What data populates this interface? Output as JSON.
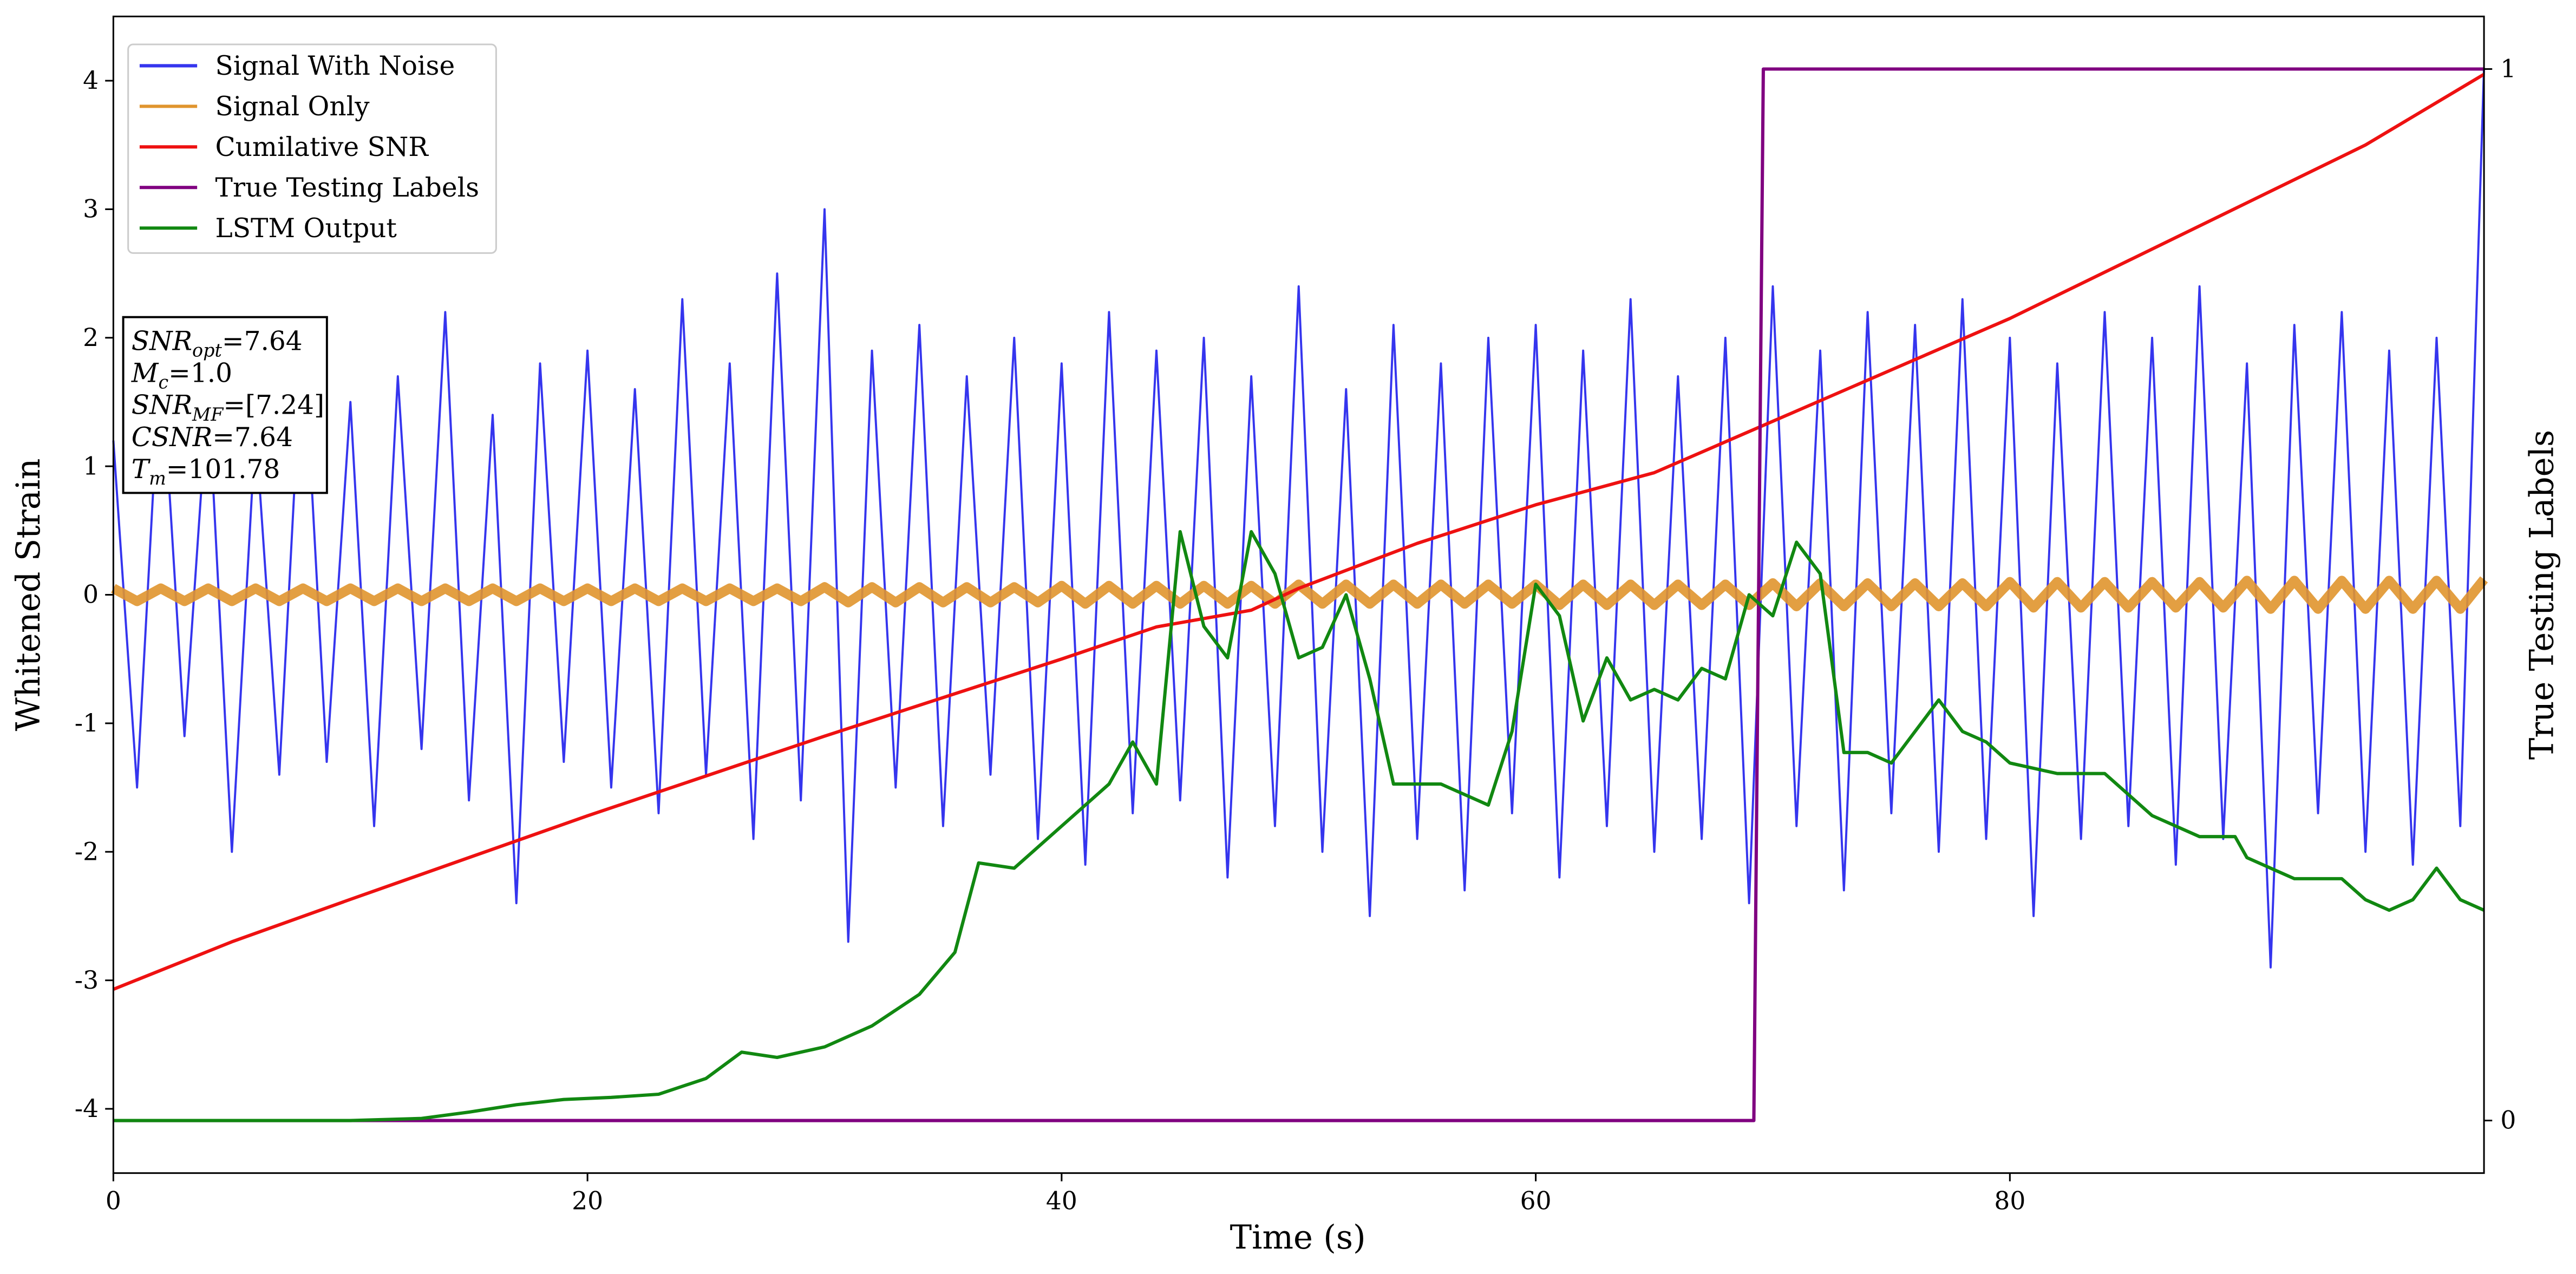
{
  "chart_data": {
    "type": "line",
    "xlabel": "Time (s)",
    "ylabel": "Whitened Strain",
    "y2label": "True Testing Labels",
    "xlim": [
      0,
      100
    ],
    "xticks": [
      0,
      20,
      40,
      60,
      80
    ],
    "ylim": [
      -4.5,
      4.5
    ],
    "yticks": [
      -4,
      -3,
      -2,
      -1,
      0,
      1,
      2,
      3,
      4
    ],
    "y2lim": [
      -0.05,
      1.05
    ],
    "y2ticks": [
      0,
      1
    ],
    "legend": "upper left",
    "annotation": [
      {
        "symbol": "SNR",
        "sub": "opt",
        "value": "=7.64"
      },
      {
        "symbol": "M",
        "sub": "c",
        "value": "=1.0"
      },
      {
        "symbol": "SNR",
        "sub": "MF",
        "value": "=[7.24]"
      },
      {
        "symbol": "CSNR",
        "value": "=7.64"
      },
      {
        "symbol": "T",
        "sub": "m",
        "value": "=101.78"
      }
    ],
    "series": [
      {
        "name": "Signal With Noise",
        "color": "#3535ee",
        "x": [
          0,
          1,
          2,
          3,
          4,
          5,
          6,
          7,
          8,
          9,
          10,
          11,
          12,
          13,
          14,
          15,
          16,
          17,
          18,
          19,
          20,
          21,
          22,
          23,
          24,
          25,
          26,
          27,
          28,
          29,
          30,
          31,
          32,
          33,
          34,
          35,
          36,
          37,
          38,
          39,
          40,
          41,
          42,
          43,
          44,
          45,
          46,
          47,
          48,
          49,
          50,
          51,
          52,
          53,
          54,
          55,
          56,
          57,
          58,
          59,
          60,
          61,
          62,
          63,
          64,
          65,
          66,
          67,
          68,
          69,
          70,
          71,
          72,
          73,
          74,
          75,
          76,
          77,
          78,
          79,
          80,
          81,
          82,
          83,
          84,
          85,
          86,
          87,
          88,
          89,
          90,
          91,
          92,
          93,
          94,
          95,
          96,
          97,
          98,
          99,
          100
        ],
        "values": [
          1.2,
          -1.5,
          1.9,
          -1.1,
          1.6,
          -2.0,
          1.3,
          -1.4,
          2.1,
          -1.3,
          1.5,
          -1.8,
          1.7,
          -1.2,
          2.2,
          -1.6,
          1.4,
          -2.4,
          1.8,
          -1.3,
          1.9,
          -1.5,
          1.6,
          -1.7,
          2.3,
          -1.4,
          1.8,
          -1.9,
          2.5,
          -1.6,
          3.0,
          -2.7,
          1.9,
          -1.5,
          2.1,
          -1.8,
          1.7,
          -1.4,
          2.0,
          -1.9,
          1.8,
          -2.1,
          2.2,
          -1.7,
          1.9,
          -1.6,
          2.0,
          -2.2,
          1.7,
          -1.8,
          2.4,
          -2.0,
          1.6,
          -2.5,
          2.1,
          -1.9,
          1.8,
          -2.3,
          2.0,
          -1.7,
          2.1,
          -2.2,
          1.9,
          -1.8,
          2.3,
          -2.0,
          1.7,
          -1.9,
          2.0,
          -2.4,
          2.4,
          -1.8,
          1.9,
          -2.3,
          2.2,
          -1.7,
          2.1,
          -2.0,
          2.3,
          -1.9,
          2.0,
          -2.5,
          1.8,
          -1.9,
          2.2,
          -1.8,
          2.0,
          -2.1,
          2.4,
          -1.9,
          1.8,
          -2.9,
          2.1,
          -1.7,
          2.2,
          -2.0,
          1.9,
          -2.1,
          2.0,
          -1.8,
          4.1
        ]
      },
      {
        "name": "Signal Only",
        "color": "#e0952e",
        "x": [
          0,
          1,
          2,
          3,
          4,
          5,
          6,
          7,
          8,
          9,
          10,
          11,
          12,
          13,
          14,
          15,
          16,
          17,
          18,
          19,
          20,
          21,
          22,
          23,
          24,
          25,
          26,
          27,
          28,
          29,
          30,
          31,
          32,
          33,
          34,
          35,
          36,
          37,
          38,
          39,
          40,
          41,
          42,
          43,
          44,
          45,
          46,
          47,
          48,
          49,
          50,
          51,
          52,
          53,
          54,
          55,
          56,
          57,
          58,
          59,
          60,
          61,
          62,
          63,
          64,
          65,
          66,
          67,
          68,
          69,
          70,
          71,
          72,
          73,
          74,
          75,
          76,
          77,
          78,
          79,
          80,
          81,
          82,
          83,
          84,
          85,
          86,
          87,
          88,
          89,
          90,
          91,
          92,
          93,
          94,
          95,
          96,
          97,
          98,
          99,
          100
        ],
        "values": [
          0.05,
          -0.05,
          0.05,
          -0.05,
          0.05,
          -0.05,
          0.05,
          -0.05,
          0.05,
          -0.05,
          0.05,
          -0.05,
          0.05,
          -0.05,
          0.05,
          -0.05,
          0.05,
          -0.05,
          0.05,
          -0.05,
          0.05,
          -0.05,
          0.05,
          -0.05,
          0.05,
          -0.05,
          0.05,
          -0.05,
          0.05,
          -0.05,
          0.06,
          -0.06,
          0.06,
          -0.06,
          0.06,
          -0.06,
          0.06,
          -0.06,
          0.06,
          -0.06,
          0.07,
          -0.07,
          0.07,
          -0.07,
          0.07,
          -0.07,
          0.07,
          -0.07,
          0.07,
          -0.07,
          0.08,
          -0.07,
          0.08,
          -0.07,
          0.08,
          -0.07,
          0.08,
          -0.07,
          0.08,
          -0.07,
          0.08,
          -0.08,
          0.08,
          -0.08,
          0.08,
          -0.08,
          0.08,
          -0.08,
          0.08,
          -0.08,
          0.09,
          -0.09,
          0.09,
          -0.09,
          0.09,
          -0.09,
          0.09,
          -0.09,
          0.09,
          -0.09,
          0.1,
          -0.1,
          0.1,
          -0.1,
          0.1,
          -0.1,
          0.1,
          -0.1,
          0.1,
          -0.1,
          0.11,
          -0.11,
          0.11,
          -0.11,
          0.11,
          -0.11,
          0.11,
          -0.11,
          0.11,
          -0.11,
          0.12
        ]
      },
      {
        "name": "Cumilative SNR",
        "color": "#ee1111",
        "x": [
          0,
          5,
          10,
          20,
          30,
          40,
          44,
          48,
          50,
          55,
          60,
          65,
          70,
          75,
          80,
          85,
          90,
          95,
          100
        ],
        "values": [
          -3.07,
          -2.7,
          -2.37,
          -1.72,
          -1.1,
          -0.5,
          -0.25,
          -0.12,
          0.05,
          0.4,
          0.7,
          0.95,
          1.35,
          1.75,
          2.15,
          2.6,
          3.05,
          3.5,
          4.05
        ]
      },
      {
        "name": "True Testing Labels",
        "color": "#800080",
        "axis": "y2",
        "x": [
          0,
          69.2,
          69.6,
          100
        ],
        "values": [
          0,
          0,
          1,
          1
        ]
      },
      {
        "name": "LSTM Output",
        "color": "#118811",
        "axis": "y2",
        "x": [
          0,
          10,
          13,
          15,
          17,
          19,
          21,
          23,
          25,
          26.5,
          28,
          30,
          32,
          34,
          35.5,
          36.5,
          38,
          40,
          42,
          43,
          44,
          45,
          46,
          47,
          48,
          49,
          50,
          51,
          52,
          53,
          54,
          56,
          57,
          58,
          59,
          60,
          61,
          62,
          63,
          64,
          65,
          66,
          67,
          68,
          69,
          70,
          71,
          72,
          73,
          74,
          75,
          76,
          77,
          78,
          79,
          80,
          82,
          84,
          86,
          88,
          89.5,
          90,
          92,
          93,
          94,
          95,
          96,
          97,
          98,
          99,
          100
        ],
        "values": [
          0,
          0,
          0.002,
          0.008,
          0.015,
          0.02,
          0.022,
          0.025,
          0.04,
          0.065,
          0.06,
          0.07,
          0.09,
          0.12,
          0.16,
          0.245,
          0.24,
          0.28,
          0.32,
          0.36,
          0.32,
          0.56,
          0.47,
          0.44,
          0.56,
          0.52,
          0.44,
          0.45,
          0.5,
          0.42,
          0.32,
          0.32,
          0.31,
          0.3,
          0.37,
          0.51,
          0.48,
          0.38,
          0.44,
          0.4,
          0.41,
          0.4,
          0.43,
          0.42,
          0.5,
          0.48,
          0.55,
          0.52,
          0.35,
          0.35,
          0.34,
          0.37,
          0.4,
          0.37,
          0.36,
          0.34,
          0.33,
          0.33,
          0.29,
          0.27,
          0.27,
          0.25,
          0.23,
          0.23,
          0.23,
          0.21,
          0.2,
          0.21,
          0.24,
          0.21,
          0.2
        ]
      }
    ]
  }
}
